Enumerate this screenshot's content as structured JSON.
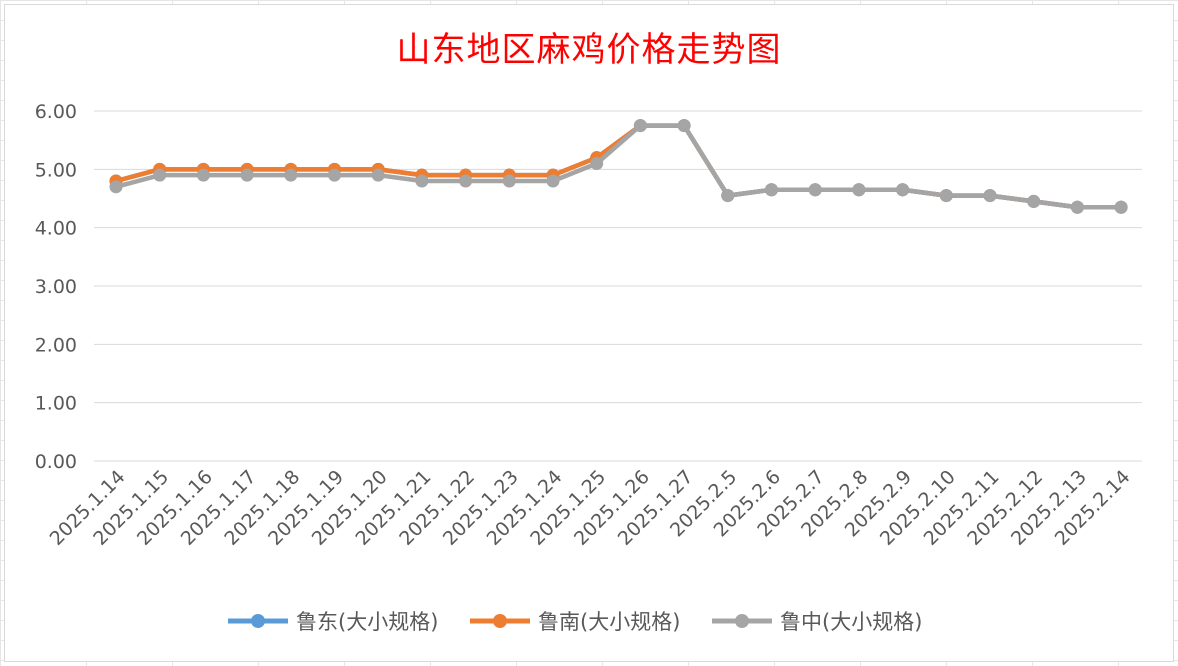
{
  "chart_data": {
    "type": "line",
    "title": "山东地区麻鸡价格走势图",
    "xlabel": "",
    "ylabel": "",
    "ylim": [
      0,
      6
    ],
    "yticks": [
      "0.00",
      "1.00",
      "2.00",
      "3.00",
      "4.00",
      "5.00",
      "6.00"
    ],
    "categories": [
      "2025.1.14",
      "2025.1.15",
      "2025.1.16",
      "2025.1.17",
      "2025.1.18",
      "2025.1.19",
      "2025.1.20",
      "2025.1.21",
      "2025.1.22",
      "2025.1.23",
      "2025.1.24",
      "2025.1.25",
      "2025.1.26",
      "2025.1.27",
      "2025.2.5",
      "2025.2.6",
      "2025.2.7",
      "2025.2.8",
      "2025.2.9",
      "2025.2.10",
      "2025.2.11",
      "2025.2.12",
      "2025.2.13",
      "2025.2.14"
    ],
    "series": [
      {
        "name": "鲁东(大小规格)",
        "color": "#5b9bd5",
        "values": [
          4.8,
          5.0,
          5.0,
          5.0,
          5.0,
          5.0,
          5.0,
          4.9,
          4.9,
          4.9,
          4.9,
          5.2,
          5.75,
          5.75,
          4.55,
          4.65,
          4.65,
          4.65,
          4.65,
          4.55,
          4.55,
          4.45,
          4.35,
          4.35
        ]
      },
      {
        "name": "鲁南(大小规格)",
        "color": "#ed7d31",
        "values": [
          4.8,
          5.0,
          5.0,
          5.0,
          5.0,
          5.0,
          5.0,
          4.9,
          4.9,
          4.9,
          4.9,
          5.2,
          5.75,
          5.75,
          4.55,
          4.65,
          4.65,
          4.65,
          4.65,
          4.55,
          4.55,
          4.45,
          4.35,
          4.35
        ]
      },
      {
        "name": "鲁中(大小规格)",
        "color": "#a5a5a5",
        "values": [
          4.7,
          4.9,
          4.9,
          4.9,
          4.9,
          4.9,
          4.9,
          4.8,
          4.8,
          4.8,
          4.8,
          5.1,
          5.75,
          5.75,
          4.55,
          4.65,
          4.65,
          4.65,
          4.65,
          4.55,
          4.55,
          4.45,
          4.35,
          4.35
        ]
      }
    ],
    "grid": true,
    "legend": "bottom"
  }
}
